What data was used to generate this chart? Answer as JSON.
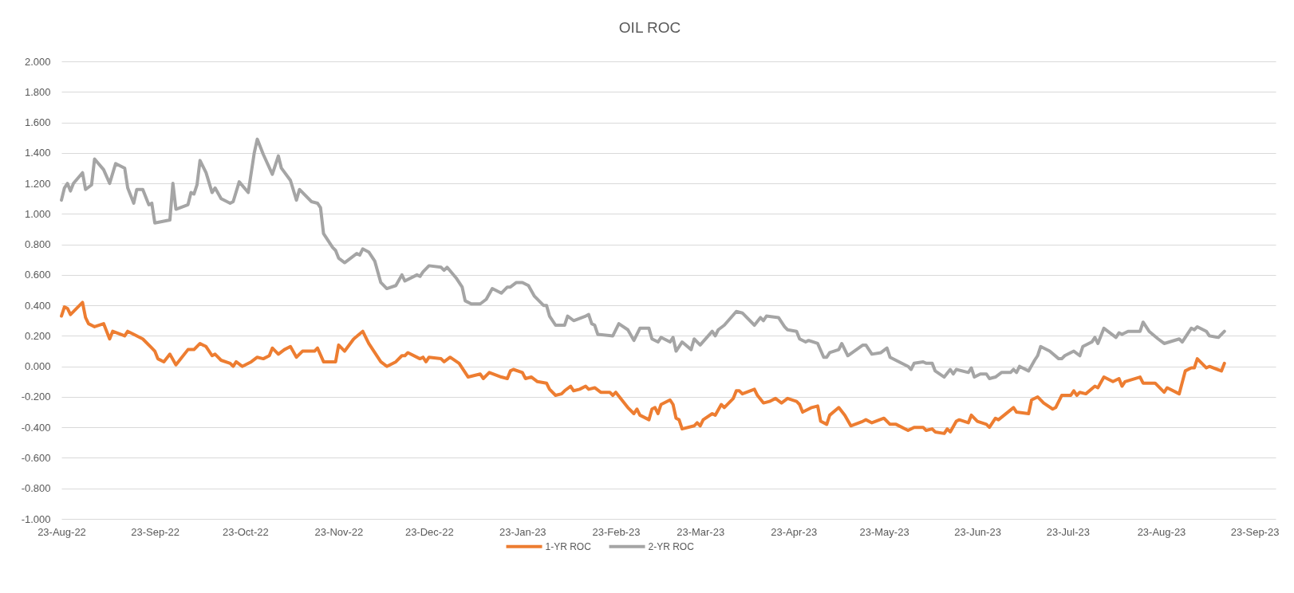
{
  "chart_data": {
    "type": "line",
    "title": "OIL ROC",
    "xlim": [
      "2022-08-23",
      "2023-09-30"
    ],
    "xticks": [
      {
        "value": "2022-08-23",
        "label": "23-Aug-22"
      },
      {
        "value": "2022-09-23",
        "label": "23-Sep-22"
      },
      {
        "value": "2022-10-23",
        "label": "23-Oct-22"
      },
      {
        "value": "2022-11-23",
        "label": "23-Nov-22"
      },
      {
        "value": "2022-12-23",
        "label": "23-Dec-22"
      },
      {
        "value": "2023-01-23",
        "label": "23-Jan-23"
      },
      {
        "value": "2023-02-23",
        "label": "23-Feb-23"
      },
      {
        "value": "2023-03-23",
        "label": "23-Mar-23"
      },
      {
        "value": "2023-04-23",
        "label": "23-Apr-23"
      },
      {
        "value": "2023-05-23",
        "label": "23-May-23"
      },
      {
        "value": "2023-06-23",
        "label": "23-Jun-23"
      },
      {
        "value": "2023-07-23",
        "label": "23-Jul-23"
      },
      {
        "value": "2023-08-23",
        "label": "23-Aug-23"
      },
      {
        "value": "2023-09-23",
        "label": "23-Sep-23"
      }
    ],
    "ylim": [
      -1,
      2
    ],
    "yticks": [
      {
        "value": -1,
        "label": "-1.000"
      },
      {
        "value": -0.8,
        "label": "-0.800"
      },
      {
        "value": -0.6,
        "label": "-0.600"
      },
      {
        "value": -0.4,
        "label": "-0.400"
      },
      {
        "value": -0.2,
        "label": "-0.200"
      },
      {
        "value": 0,
        "label": "0.000"
      },
      {
        "value": 0.2,
        "label": "0.200"
      },
      {
        "value": 0.4,
        "label": "0.400"
      },
      {
        "value": 0.6,
        "label": "0.600"
      },
      {
        "value": 0.8,
        "label": "0.800"
      },
      {
        "value": 1,
        "label": "1.000"
      },
      {
        "value": 1.2,
        "label": "1.200"
      },
      {
        "value": 1.4,
        "label": "1.400"
      },
      {
        "value": 1.6,
        "label": "1.600"
      },
      {
        "value": 1.8,
        "label": "1.800"
      },
      {
        "value": 2,
        "label": "2.000"
      }
    ],
    "grid": "y",
    "legend": "bottom",
    "series": [
      {
        "name": "1-YR ROC",
        "color": "#ed7d31",
        "x": [
          "2022-08-23",
          "2022-08-24",
          "2022-08-25",
          "2022-08-26",
          "2022-08-27",
          "2022-08-30",
          "2022-08-31",
          "2022-09-01",
          "2022-09-03",
          "2022-09-06",
          "2022-09-08",
          "2022-09-09",
          "2022-09-13",
          "2022-09-14",
          "2022-09-16",
          "2022-09-19",
          "2022-09-22",
          "2022-09-23",
          "2022-09-24",
          "2022-09-26",
          "2022-09-28",
          "2022-09-30",
          "2022-10-04",
          "2022-10-06",
          "2022-10-08",
          "2022-10-10",
          "2022-10-12",
          "2022-10-13",
          "2022-10-15",
          "2022-10-18",
          "2022-10-19",
          "2022-10-20",
          "2022-10-22",
          "2022-10-25",
          "2022-10-27",
          "2022-10-29",
          "2022-10-31",
          "2022-11-01",
          "2022-11-03",
          "2022-11-05",
          "2022-11-07",
          "2022-11-09",
          "2022-11-11",
          "2022-11-15",
          "2022-11-16",
          "2022-11-18",
          "2022-11-22",
          "2022-11-23",
          "2022-11-25",
          "2022-11-28",
          "2022-12-01",
          "2022-12-03",
          "2022-12-05",
          "2022-12-07",
          "2022-12-09",
          "2022-12-12",
          "2022-12-14",
          "2022-12-15",
          "2022-12-16",
          "2022-12-20",
          "2022-12-21",
          "2022-12-22",
          "2022-12-23",
          "2022-12-27",
          "2022-12-28",
          "2022-12-30",
          "2023-01-02",
          "2023-01-03",
          "2023-01-05",
          "2023-01-09",
          "2023-01-10",
          "2023-01-12",
          "2023-01-16",
          "2023-01-18",
          "2023-01-19",
          "2023-01-20",
          "2023-01-23",
          "2023-01-24",
          "2023-01-26",
          "2023-01-28",
          "2023-01-31",
          "2023-02-01",
          "2023-02-03",
          "2023-02-05",
          "2023-02-06",
          "2023-02-08",
          "2023-02-09",
          "2023-02-11",
          "2023-02-13",
          "2023-02-14",
          "2023-02-16",
          "2023-02-18",
          "2023-02-21",
          "2023-02-22",
          "2023-02-23",
          "2023-02-27",
          "2023-03-01",
          "2023-03-02",
          "2023-03-03",
          "2023-03-06",
          "2023-03-07",
          "2023-03-08",
          "2023-03-09",
          "2023-03-10",
          "2023-03-13",
          "2023-03-14",
          "2023-03-15",
          "2023-03-16",
          "2023-03-17",
          "2023-03-21",
          "2023-03-22",
          "2023-03-23",
          "2023-03-24",
          "2023-03-27",
          "2023-03-28",
          "2023-03-30",
          "2023-03-31",
          "2023-04-03",
          "2023-04-04",
          "2023-04-05",
          "2023-04-06",
          "2023-04-10",
          "2023-04-11",
          "2023-04-13",
          "2023-04-15",
          "2023-04-17",
          "2023-04-19",
          "2023-04-21",
          "2023-04-24",
          "2023-04-25",
          "2023-04-26",
          "2023-04-29",
          "2023-05-01",
          "2023-05-02",
          "2023-05-04",
          "2023-05-05",
          "2023-05-08",
          "2023-05-10",
          "2023-05-12",
          "2023-05-16",
          "2023-05-17",
          "2023-05-19",
          "2023-05-23",
          "2023-05-25",
          "2023-05-27",
          "2023-05-31",
          "2023-06-02",
          "2023-06-05",
          "2023-06-06",
          "2023-06-08",
          "2023-06-09",
          "2023-06-12",
          "2023-06-13",
          "2023-06-14",
          "2023-06-16",
          "2023-06-17",
          "2023-06-20",
          "2023-06-21",
          "2023-06-23",
          "2023-06-26",
          "2023-06-27",
          "2023-06-29",
          "2023-06-30",
          "2023-07-05",
          "2023-07-06",
          "2023-07-10",
          "2023-07-11",
          "2023-07-13",
          "2023-07-15",
          "2023-07-18",
          "2023-07-19",
          "2023-07-21",
          "2023-07-24",
          "2023-07-25",
          "2023-07-26",
          "2023-07-27",
          "2023-07-29",
          "2023-08-01",
          "2023-08-02",
          "2023-08-04",
          "2023-08-07",
          "2023-08-09",
          "2023-08-10",
          "2023-08-11",
          "2023-08-16",
          "2023-08-17",
          "2023-08-21",
          "2023-08-24",
          "2023-08-25",
          "2023-08-29",
          "2023-08-31",
          "2023-09-02",
          "2023-09-03",
          "2023-09-04",
          "2023-09-07",
          "2023-09-08",
          "2023-09-12",
          "2023-09-13"
        ],
        "values": [
          0.33,
          0.39,
          0.38,
          0.34,
          0.36,
          0.42,
          0.32,
          0.28,
          0.26,
          0.28,
          0.18,
          0.23,
          0.2,
          0.23,
          0.21,
          0.18,
          0.12,
          0.1,
          0.05,
          0.03,
          0.08,
          0.01,
          0.11,
          0.11,
          0.15,
          0.13,
          0.07,
          0.08,
          0.04,
          0.02,
          0,
          0.03,
          0,
          0.03,
          0.06,
          0.05,
          0.07,
          0.12,
          0.08,
          0.11,
          0.13,
          0.06,
          0.1,
          0.1,
          0.12,
          0.03,
          0.03,
          0.14,
          0.1,
          0.18,
          0.23,
          0.15,
          0.09,
          0.03,
          0,
          0.03,
          0.07,
          0.07,
          0.09,
          0.05,
          0.06,
          0.03,
          0.06,
          0.05,
          0.03,
          0.06,
          0.02,
          -0.01,
          -0.07,
          -0.05,
          -0.08,
          -0.04,
          -0.07,
          -0.08,
          -0.03,
          -0.02,
          -0.04,
          -0.08,
          -0.07,
          -0.1,
          -0.11,
          -0.15,
          -0.19,
          -0.18,
          -0.16,
          -0.13,
          -0.16,
          -0.15,
          -0.13,
          -0.15,
          -0.14,
          -0.17,
          -0.17,
          -0.19,
          -0.17,
          -0.27,
          -0.31,
          -0.28,
          -0.32,
          -0.35,
          -0.28,
          -0.27,
          -0.31,
          -0.25,
          -0.22,
          -0.25,
          -0.34,
          -0.35,
          -0.41,
          -0.39,
          -0.37,
          -0.39,
          -0.35,
          -0.31,
          -0.32,
          -0.25,
          -0.27,
          -0.21,
          -0.16,
          -0.16,
          -0.18,
          -0.15,
          -0.19,
          -0.24,
          -0.23,
          -0.21,
          -0.24,
          -0.21,
          -0.23,
          -0.25,
          -0.3,
          -0.27,
          -0.26,
          -0.36,
          -0.38,
          -0.32,
          -0.27,
          -0.32,
          -0.39,
          -0.36,
          -0.35,
          -0.37,
          -0.34,
          -0.38,
          -0.38,
          -0.42,
          -0.4,
          -0.4,
          -0.42,
          -0.41,
          -0.43,
          -0.44,
          -0.41,
          -0.43,
          -0.36,
          -0.35,
          -0.37,
          -0.32,
          -0.36,
          -0.38,
          -0.4,
          -0.34,
          -0.35,
          -0.27,
          -0.3,
          -0.31,
          -0.22,
          -0.2,
          -0.24,
          -0.28,
          -0.27,
          -0.19,
          -0.19,
          -0.16,
          -0.19,
          -0.17,
          -0.18,
          -0.13,
          -0.14,
          -0.07,
          -0.1,
          -0.08,
          -0.13,
          -0.1,
          -0.07,
          -0.11,
          -0.11,
          -0.17,
          -0.14,
          -0.18,
          -0.03,
          -0.01,
          -0.01,
          0.05,
          -0.01,
          0,
          -0.03,
          0.02
        ]
      },
      {
        "name": "2-YR ROC",
        "color": "#a5a5a5",
        "x": [
          "2022-08-23",
          "2022-08-24",
          "2022-08-25",
          "2022-08-26",
          "2022-08-27",
          "2022-08-30",
          "2022-08-31",
          "2022-09-02",
          "2022-09-03",
          "2022-09-06",
          "2022-09-08",
          "2022-09-10",
          "2022-09-13",
          "2022-09-14",
          "2022-09-16",
          "2022-09-17",
          "2022-09-19",
          "2022-09-21",
          "2022-09-22",
          "2022-09-23",
          "2022-09-28",
          "2022-09-29",
          "2022-09-30",
          "2022-10-04",
          "2022-10-05",
          "2022-10-06",
          "2022-10-07",
          "2022-10-08",
          "2022-10-10",
          "2022-10-12",
          "2022-10-13",
          "2022-10-15",
          "2022-10-18",
          "2022-10-19",
          "2022-10-21",
          "2022-10-24",
          "2022-10-26",
          "2022-10-27",
          "2022-10-29",
          "2022-11-01",
          "2022-11-03",
          "2022-11-04",
          "2022-11-07",
          "2022-11-09",
          "2022-11-10",
          "2022-11-14",
          "2022-11-16",
          "2022-11-17",
          "2022-11-18",
          "2022-11-21",
          "2022-11-22",
          "2022-11-23",
          "2022-11-25",
          "2022-11-29",
          "2022-11-30",
          "2022-12-01",
          "2022-12-03",
          "2022-12-05",
          "2022-12-07",
          "2022-12-09",
          "2022-12-12",
          "2022-12-14",
          "2022-12-15",
          "2022-12-19",
          "2022-12-20",
          "2022-12-21",
          "2022-12-23",
          "2022-12-27",
          "2022-12-28",
          "2022-12-29",
          "2023-01-01",
          "2023-01-03",
          "2023-01-04",
          "2023-01-06",
          "2023-01-09",
          "2023-01-11",
          "2023-01-13",
          "2023-01-16",
          "2023-01-18",
          "2023-01-19",
          "2023-01-21",
          "2023-01-23",
          "2023-01-25",
          "2023-01-27",
          "2023-01-30",
          "2023-01-31",
          "2023-02-01",
          "2023-02-03",
          "2023-02-06",
          "2023-02-07",
          "2023-02-09",
          "2023-02-13",
          "2023-02-14",
          "2023-02-15",
          "2023-02-16",
          "2023-02-17",
          "2023-02-22",
          "2023-02-24",
          "2023-02-27",
          "2023-03-01",
          "2023-03-03",
          "2023-03-06",
          "2023-03-07",
          "2023-03-09",
          "2023-03-10",
          "2023-03-13",
          "2023-03-14",
          "2023-03-15",
          "2023-03-17",
          "2023-03-20",
          "2023-03-21",
          "2023-03-23",
          "2023-03-27",
          "2023-03-28",
          "2023-03-29",
          "2023-03-31",
          "2023-04-04",
          "2023-04-06",
          "2023-04-10",
          "2023-04-12",
          "2023-04-13",
          "2023-04-14",
          "2023-04-18",
          "2023-04-20",
          "2023-04-21",
          "2023-04-24",
          "2023-04-25",
          "2023-04-27",
          "2023-04-28",
          "2023-05-01",
          "2023-05-03",
          "2023-05-04",
          "2023-05-05",
          "2023-05-08",
          "2023-05-09",
          "2023-05-11",
          "2023-05-16",
          "2023-05-17",
          "2023-05-19",
          "2023-05-22",
          "2023-05-24",
          "2023-05-25",
          "2023-05-31",
          "2023-06-01",
          "2023-06-02",
          "2023-06-05",
          "2023-06-06",
          "2023-06-08",
          "2023-06-09",
          "2023-06-12",
          "2023-06-14",
          "2023-06-15",
          "2023-06-16",
          "2023-06-20",
          "2023-06-21",
          "2023-06-22",
          "2023-06-24",
          "2023-06-26",
          "2023-06-27",
          "2023-06-29",
          "2023-07-01",
          "2023-07-04",
          "2023-07-05",
          "2023-07-06",
          "2023-07-07",
          "2023-07-10",
          "2023-07-12",
          "2023-07-13",
          "2023-07-14",
          "2023-07-17",
          "2023-07-20",
          "2023-07-21",
          "2023-07-22",
          "2023-07-25",
          "2023-07-27",
          "2023-07-28",
          "2023-07-31",
          "2023-08-01",
          "2023-08-02",
          "2023-08-04",
          "2023-08-08",
          "2023-08-09",
          "2023-08-10",
          "2023-08-12",
          "2023-08-16",
          "2023-08-17",
          "2023-08-19",
          "2023-08-22",
          "2023-08-24",
          "2023-08-29",
          "2023-08-30",
          "2023-09-02",
          "2023-09-03",
          "2023-09-04",
          "2023-09-07",
          "2023-09-08",
          "2023-09-11",
          "2023-09-13"
        ],
        "values": [
          1.09,
          1.17,
          1.2,
          1.15,
          1.2,
          1.27,
          1.16,
          1.19,
          1.36,
          1.29,
          1.2,
          1.33,
          1.3,
          1.17,
          1.07,
          1.16,
          1.16,
          1.06,
          1.07,
          0.94,
          0.96,
          1.2,
          1.03,
          1.06,
          1.14,
          1.13,
          1.19,
          1.35,
          1.27,
          1.14,
          1.17,
          1.1,
          1.07,
          1.08,
          1.21,
          1.14,
          1.4,
          1.49,
          1.39,
          1.26,
          1.38,
          1.3,
          1.22,
          1.09,
          1.16,
          1.08,
          1.07,
          1.04,
          0.87,
          0.78,
          0.76,
          0.71,
          0.68,
          0.74,
          0.73,
          0.77,
          0.75,
          0.69,
          0.55,
          0.51,
          0.53,
          0.6,
          0.56,
          0.6,
          0.59,
          0.62,
          0.66,
          0.65,
          0.63,
          0.65,
          0.58,
          0.52,
          0.43,
          0.41,
          0.41,
          0.44,
          0.51,
          0.48,
          0.52,
          0.52,
          0.55,
          0.55,
          0.53,
          0.46,
          0.4,
          0.4,
          0.33,
          0.27,
          0.27,
          0.33,
          0.3,
          0.33,
          0.34,
          0.28,
          0.27,
          0.21,
          0.2,
          0.28,
          0.24,
          0.17,
          0.25,
          0.25,
          0.18,
          0.16,
          0.19,
          0.16,
          0.19,
          0.1,
          0.16,
          0.11,
          0.18,
          0.14,
          0.23,
          0.2,
          0.24,
          0.27,
          0.36,
          0.35,
          0.27,
          0.32,
          0.3,
          0.33,
          0.32,
          0.26,
          0.24,
          0.23,
          0.18,
          0.16,
          0.17,
          0.15,
          0.06,
          0.06,
          0.09,
          0.11,
          0.15,
          0.07,
          0.14,
          0.14,
          0.08,
          0.09,
          0.12,
          0.06,
          0,
          -0.02,
          0.02,
          0.03,
          0.02,
          0.02,
          -0.03,
          -0.07,
          -0.02,
          -0.05,
          -0.02,
          -0.04,
          -0.01,
          -0.07,
          -0.05,
          -0.05,
          -0.08,
          -0.07,
          -0.04,
          -0.04,
          -0.02,
          -0.04,
          0,
          -0.03,
          0.04,
          0.07,
          0.13,
          0.1,
          0.05,
          0.05,
          0.07,
          0.1,
          0.07,
          0.13,
          0.16,
          0.19,
          0.15,
          0.25,
          0.19,
          0.22,
          0.21,
          0.23,
          0.23,
          0.29,
          0.23,
          0.18,
          0.15,
          0.18,
          0.16,
          0.25,
          0.24,
          0.26,
          0.23,
          0.2,
          0.19,
          0.23
        ]
      }
    ]
  }
}
